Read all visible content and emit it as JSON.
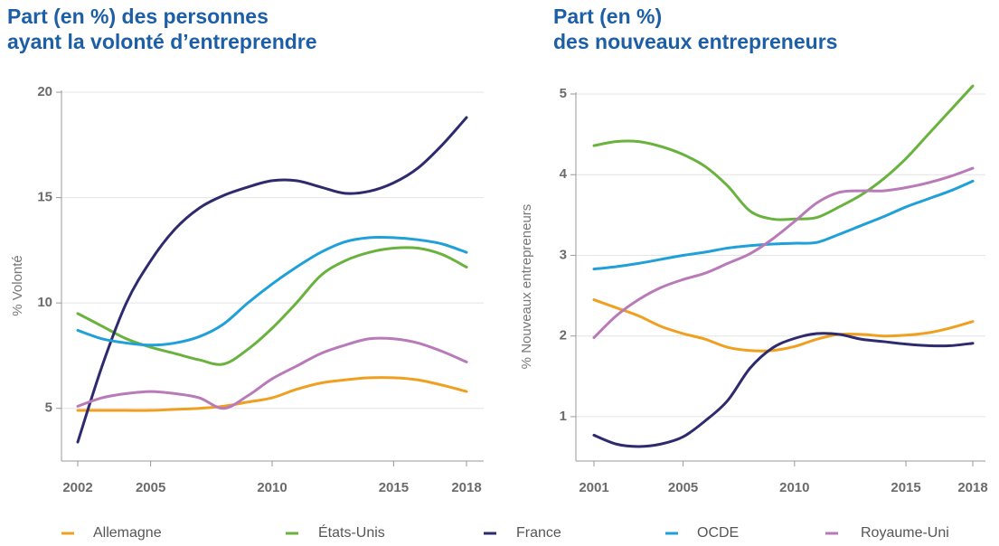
{
  "chart_data": [
    {
      "type": "line",
      "title": [
        "Part (en %) des personnes",
        "ayant la volonté d’entreprendre"
      ],
      "y_label": "% Volonté",
      "x": [
        2002,
        2003,
        2004,
        2005,
        2006,
        2007,
        2008,
        2009,
        2010,
        2011,
        2012,
        2013,
        2014,
        2015,
        2016,
        2017,
        2018
      ],
      "xlim": [
        2002,
        2018
      ],
      "xticks": [
        2002,
        2005,
        2010,
        2015,
        2018
      ],
      "ylim": [
        2.5,
        20
      ],
      "yticks": [
        5,
        10,
        15,
        20
      ],
      "grid": true,
      "series": [
        {
          "name": "Allemagne",
          "color": "#f0a020",
          "values": [
            4.9,
            4.9,
            4.9,
            4.9,
            4.95,
            5.0,
            5.1,
            5.3,
            5.5,
            5.9,
            6.2,
            6.35,
            6.45,
            6.45,
            6.35,
            6.1,
            5.8
          ]
        },
        {
          "name": "États-Unis",
          "color": "#6ab23e",
          "values": [
            9.5,
            8.9,
            8.3,
            7.9,
            7.6,
            7.3,
            7.1,
            7.8,
            8.8,
            10.0,
            11.3,
            12.0,
            12.4,
            12.6,
            12.6,
            12.3,
            11.7
          ]
        },
        {
          "name": "France",
          "color": "#2e2a6e",
          "values": [
            3.4,
            7.0,
            10.0,
            12.0,
            13.5,
            14.5,
            15.1,
            15.5,
            15.8,
            15.8,
            15.5,
            15.2,
            15.3,
            15.7,
            16.4,
            17.5,
            18.8
          ]
        },
        {
          "name": "OCDE",
          "color": "#1fa0d8",
          "values": [
            8.7,
            8.3,
            8.1,
            8.0,
            8.1,
            8.4,
            9.0,
            10.0,
            10.9,
            11.7,
            12.4,
            12.9,
            13.1,
            13.1,
            13.0,
            12.8,
            12.4
          ]
        },
        {
          "name": "Royaume-Uni",
          "color": "#b87ab8",
          "values": [
            5.1,
            5.5,
            5.7,
            5.8,
            5.7,
            5.5,
            5.0,
            5.6,
            6.4,
            7.0,
            7.6,
            8.0,
            8.3,
            8.3,
            8.1,
            7.7,
            7.2
          ]
        }
      ]
    },
    {
      "type": "line",
      "title": [
        "Part (en %)",
        "des nouveaux entrepreneurs"
      ],
      "y_label": "% Nouveaux entrepreneurs",
      "x": [
        2001,
        2002,
        2003,
        2004,
        2005,
        2006,
        2007,
        2008,
        2009,
        2010,
        2011,
        2012,
        2013,
        2014,
        2015,
        2016,
        2017,
        2018
      ],
      "xlim": [
        2001,
        2018
      ],
      "xticks": [
        2001,
        2005,
        2010,
        2015,
        2018
      ],
      "ylim": [
        0.45,
        5
      ],
      "yticks": [
        1,
        2,
        3,
        4,
        5
      ],
      "grid": true,
      "series": [
        {
          "color": "#f0a020",
          "values": [
            2.45,
            2.35,
            2.25,
            2.12,
            2.03,
            1.96,
            1.86,
            1.82,
            1.82,
            1.87,
            1.96,
            2.02,
            2.02,
            2.0,
            2.01,
            2.04,
            2.1,
            2.18
          ]
        },
        {
          "color": "#6ab23e",
          "values": [
            4.36,
            4.41,
            4.41,
            4.35,
            4.25,
            4.1,
            3.86,
            3.55,
            3.45,
            3.45,
            3.47,
            3.6,
            3.75,
            3.95,
            4.2,
            4.5,
            4.8,
            5.1
          ]
        },
        {
          "color": "#2e2a6e",
          "values": [
            0.77,
            0.66,
            0.63,
            0.66,
            0.75,
            0.95,
            1.2,
            1.6,
            1.85,
            1.97,
            2.03,
            2.02,
            1.96,
            1.93,
            1.9,
            1.88,
            1.88,
            1.91
          ]
        },
        {
          "color": "#1fa0d8",
          "values": [
            2.83,
            2.86,
            2.9,
            2.95,
            3.0,
            3.04,
            3.09,
            3.12,
            3.14,
            3.15,
            3.16,
            3.26,
            3.37,
            3.48,
            3.6,
            3.7,
            3.8,
            3.92
          ]
        },
        {
          "color": "#b87ab8",
          "values": [
            1.98,
            2.25,
            2.45,
            2.6,
            2.7,
            2.78,
            2.9,
            3.02,
            3.2,
            3.42,
            3.65,
            3.78,
            3.8,
            3.8,
            3.84,
            3.9,
            3.98,
            4.08
          ]
        }
      ]
    }
  ]
}
